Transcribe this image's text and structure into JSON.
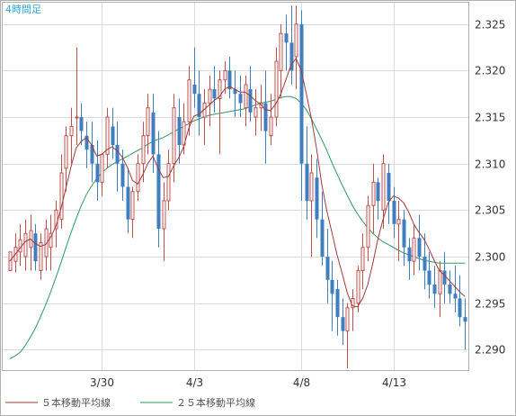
{
  "chart_data": {
    "type": "candlestick",
    "title": "4時間足",
    "x_ticks": [
      "3/30",
      "4/3",
      "4/8",
      "4/13"
    ],
    "y_ticks": [
      "2.290",
      "2.295",
      "2.300",
      "2.305",
      "2.310",
      "2.315",
      "2.320",
      "2.325"
    ],
    "ylim": [
      2.2878,
      2.3273
    ],
    "grid": true,
    "legend_position": "bottom-left",
    "colors": {
      "up": "#c0504d",
      "down": "#3f7fc0",
      "ma5": "#a03a3a",
      "ma25": "#2e9a5e",
      "title": "#2fa8d8"
    },
    "series": [
      {
        "name": "５本移動平均線",
        "kind": "line",
        "color": "#a03a3a"
      },
      {
        "name": "２５本移動平均線",
        "kind": "line",
        "color": "#2e9a5e"
      }
    ],
    "candles": [
      [
        2.2985,
        2.3005,
        2.2985,
        2.3005
      ],
      [
        2.2995,
        2.3025,
        2.2983,
        2.301
      ],
      [
        2.3005,
        2.3035,
        2.299,
        2.3018
      ],
      [
        2.3,
        2.304,
        2.2985,
        2.3025
      ],
      [
        2.301,
        2.3045,
        2.2985,
        2.3028
      ],
      [
        2.3025,
        2.3035,
        2.2985,
        2.2995
      ],
      [
        2.2985,
        2.3025,
        2.2975,
        2.3015
      ],
      [
        2.3,
        2.304,
        2.2985,
        2.303
      ],
      [
        2.301,
        2.3045,
        2.2985,
        2.3025
      ],
      [
        2.303,
        2.306,
        2.301,
        2.305
      ],
      [
        2.304,
        2.311,
        2.303,
        2.309
      ],
      [
        2.3095,
        2.314,
        2.307,
        2.313
      ],
      [
        2.313,
        2.316,
        2.31,
        2.314
      ],
      [
        2.315,
        2.3225,
        2.312,
        2.315
      ],
      [
        2.315,
        2.3165,
        2.312,
        2.3135
      ],
      [
        2.313,
        2.3145,
        2.3095,
        2.3115
      ],
      [
        2.312,
        2.3145,
        2.308,
        2.31
      ],
      [
        2.31,
        2.3125,
        2.306,
        2.308
      ],
      [
        2.308,
        2.311,
        2.3065,
        2.311
      ],
      [
        2.311,
        2.316,
        2.3095,
        2.315
      ],
      [
        2.314,
        2.316,
        2.3105,
        2.312
      ],
      [
        2.312,
        2.3145,
        2.307,
        2.31
      ],
      [
        2.31,
        2.3115,
        2.306,
        2.3075
      ],
      [
        2.3075,
        2.3095,
        2.3025,
        2.304
      ],
      [
        2.304,
        2.3075,
        2.302,
        2.307
      ],
      [
        2.307,
        2.311,
        2.306,
        2.31
      ],
      [
        2.31,
        2.3145,
        2.308,
        2.313
      ],
      [
        2.313,
        2.3175,
        2.311,
        2.316
      ],
      [
        2.3155,
        2.3175,
        2.309,
        2.311
      ],
      [
        2.311,
        2.3135,
        2.301,
        2.303
      ],
      [
        2.303,
        2.308,
        2.2995,
        2.306
      ],
      [
        2.306,
        2.3115,
        2.305,
        2.31
      ],
      [
        2.31,
        2.3175,
        2.308,
        2.316
      ],
      [
        2.315,
        2.317,
        2.31,
        2.312
      ],
      [
        2.312,
        2.3165,
        2.311,
        2.3145
      ],
      [
        2.3145,
        2.3205,
        2.313,
        2.319
      ],
      [
        2.3185,
        2.3225,
        2.316,
        2.3175
      ],
      [
        2.3175,
        2.32,
        2.313,
        2.315
      ],
      [
        2.315,
        2.318,
        2.312,
        2.3165
      ],
      [
        2.3165,
        2.3195,
        2.314,
        2.318
      ],
      [
        2.318,
        2.3205,
        2.3155,
        2.317
      ],
      [
        2.317,
        2.32,
        2.311,
        2.319
      ],
      [
        2.319,
        2.321,
        2.3175,
        2.32
      ],
      [
        2.32,
        2.3215,
        2.317,
        2.318
      ],
      [
        2.318,
        2.32,
        2.315,
        2.3175
      ],
      [
        2.3175,
        2.3195,
        2.315,
        2.3165
      ],
      [
        2.316,
        2.3195,
        2.314,
        2.3185
      ],
      [
        2.318,
        2.3205,
        2.3145,
        2.3155
      ],
      [
        2.315,
        2.318,
        2.313,
        2.316
      ],
      [
        2.316,
        2.3185,
        2.3135,
        2.3165
      ],
      [
        2.3165,
        2.32,
        2.31,
        2.3135
      ],
      [
        2.313,
        2.3175,
        2.312,
        2.315
      ],
      [
        2.315,
        2.3225,
        2.314,
        2.321
      ],
      [
        2.32,
        2.325,
        2.317,
        2.324
      ],
      [
        2.324,
        2.326,
        2.32,
        2.323
      ],
      [
        2.323,
        2.327,
        2.3185,
        2.32
      ],
      [
        2.3215,
        2.327,
        2.318,
        2.325
      ],
      [
        2.325,
        2.3265,
        2.306,
        2.31
      ],
      [
        2.31,
        2.314,
        2.304,
        2.306
      ],
      [
        2.306,
        2.311,
        2.3,
        2.309
      ],
      [
        2.3085,
        2.3105,
        2.302,
        2.304
      ],
      [
        2.304,
        2.307,
        2.299,
        2.3
      ],
      [
        2.3,
        2.303,
        2.295,
        2.2975
      ],
      [
        2.2975,
        2.2995,
        2.292,
        2.296
      ],
      [
        2.2965,
        2.2975,
        2.2915,
        2.2935
      ],
      [
        2.2935,
        2.2955,
        2.2905,
        2.292
      ],
      [
        2.292,
        2.295,
        2.288,
        2.2945
      ],
      [
        2.2945,
        2.2965,
        2.292,
        2.2955
      ],
      [
        2.295,
        2.299,
        2.294,
        2.2985
      ],
      [
        2.2985,
        2.3025,
        2.2965,
        2.301
      ],
      [
        2.301,
        2.3065,
        2.2995,
        2.3055
      ],
      [
        2.3055,
        2.31,
        2.3025,
        2.308
      ],
      [
        2.308,
        2.3085,
        2.304,
        2.306
      ],
      [
        2.305,
        2.311,
        2.303,
        2.31
      ],
      [
        2.309,
        2.31,
        2.3035,
        2.306
      ],
      [
        2.306,
        2.3075,
        2.302,
        2.3035
      ],
      [
        2.3035,
        2.306,
        2.2995,
        2.304
      ],
      [
        2.304,
        2.305,
        2.299,
        2.301
      ],
      [
        2.301,
        2.302,
        2.2975,
        2.2995
      ],
      [
        2.2995,
        2.3035,
        2.298,
        2.302
      ],
      [
        2.302,
        2.3045,
        2.2985,
        2.3
      ],
      [
        2.3,
        2.3025,
        2.2965,
        2.2985
      ],
      [
        2.2985,
        2.3005,
        2.2955,
        2.297
      ],
      [
        2.297,
        2.299,
        2.2945,
        2.296
      ],
      [
        2.296,
        2.2995,
        2.2935,
        2.2985
      ],
      [
        2.2985,
        2.3005,
        2.295,
        2.297
      ],
      [
        2.297,
        2.2985,
        2.295,
        2.296
      ],
      [
        2.296,
        2.299,
        2.294,
        2.2955
      ],
      [
        2.2955,
        2.298,
        2.2925,
        2.2935
      ],
      [
        2.2935,
        2.2955,
        2.29,
        2.293
      ]
    ],
    "ma5": [
      2.2995,
      2.3002,
      2.3009,
      2.3016,
      2.3019,
      2.3014,
      2.3011,
      2.3013,
      2.3021,
      2.3032,
      2.3051,
      2.3074,
      2.3097,
      2.3117,
      2.3124,
      2.3128,
      2.312,
      2.3108,
      2.311,
      2.3115,
      2.3118,
      2.3114,
      2.3107,
      2.3096,
      2.3082,
      2.3078,
      2.3088,
      2.31,
      2.3108,
      2.3095,
      2.3085,
      2.3086,
      2.3097,
      2.3106,
      2.3118,
      2.3138,
      2.3151,
      2.3153,
      2.3158,
      2.3163,
      2.3168,
      2.3172,
      2.318,
      2.3183,
      2.318,
      2.3177,
      2.3177,
      2.3173,
      2.3168,
      2.3164,
      2.3158,
      2.3157,
      2.3164,
      2.3175,
      2.319,
      2.3206,
      2.3213,
      2.32,
      2.3175,
      2.3148,
      2.3116,
      2.3078,
      2.3049,
      2.3026,
      2.3002,
      2.2982,
      2.2961,
      2.2947,
      2.2946,
      2.2955,
      2.297,
      2.2993,
      2.3019,
      2.304,
      2.3058,
      2.3065,
      2.3063,
      2.3058,
      2.3048,
      2.3035,
      2.3026,
      2.3019,
      2.3008,
      2.2996,
      2.2985,
      2.298,
      2.2974,
      2.2968,
      2.2962,
      2.2957
    ],
    "ma25": [
      2.289,
      2.2893,
      2.2897,
      2.2904,
      2.2913,
      2.2923,
      2.2935,
      2.2948,
      2.2962,
      2.2977,
      2.2993,
      2.301,
      2.3026,
      2.3041,
      2.3055,
      2.3067,
      2.3076,
      2.3084,
      2.309,
      2.3095,
      2.3099,
      2.3102,
      2.3105,
      2.3108,
      2.3111,
      2.3114,
      2.3117,
      2.3121,
      2.3124,
      2.3126,
      2.3128,
      2.3131,
      2.3134,
      2.3137,
      2.314,
      2.3143,
      2.3146,
      2.3148,
      2.315,
      2.3152,
      2.3153,
      2.3154,
      2.3155,
      2.3156,
      2.3157,
      2.3158,
      2.3159,
      2.3161,
      2.3163,
      2.3165,
      2.3166,
      2.3167,
      2.3169,
      2.3171,
      2.3172,
      2.3172,
      2.317,
      2.3165,
      2.3158,
      2.3148,
      2.3137,
      2.3126,
      2.3114,
      2.3101,
      2.3089,
      2.3077,
      2.3066,
      2.3055,
      2.3046,
      2.3038,
      2.3031,
      2.3025,
      2.302,
      2.3016,
      2.3013,
      2.301,
      2.3007,
      2.3004,
      2.3002,
      2.3,
      2.2998,
      2.2996,
      2.2995,
      2.2994,
      2.2993,
      2.2993,
      2.2993,
      2.2993,
      2.2993,
      2.2993
    ]
  }
}
